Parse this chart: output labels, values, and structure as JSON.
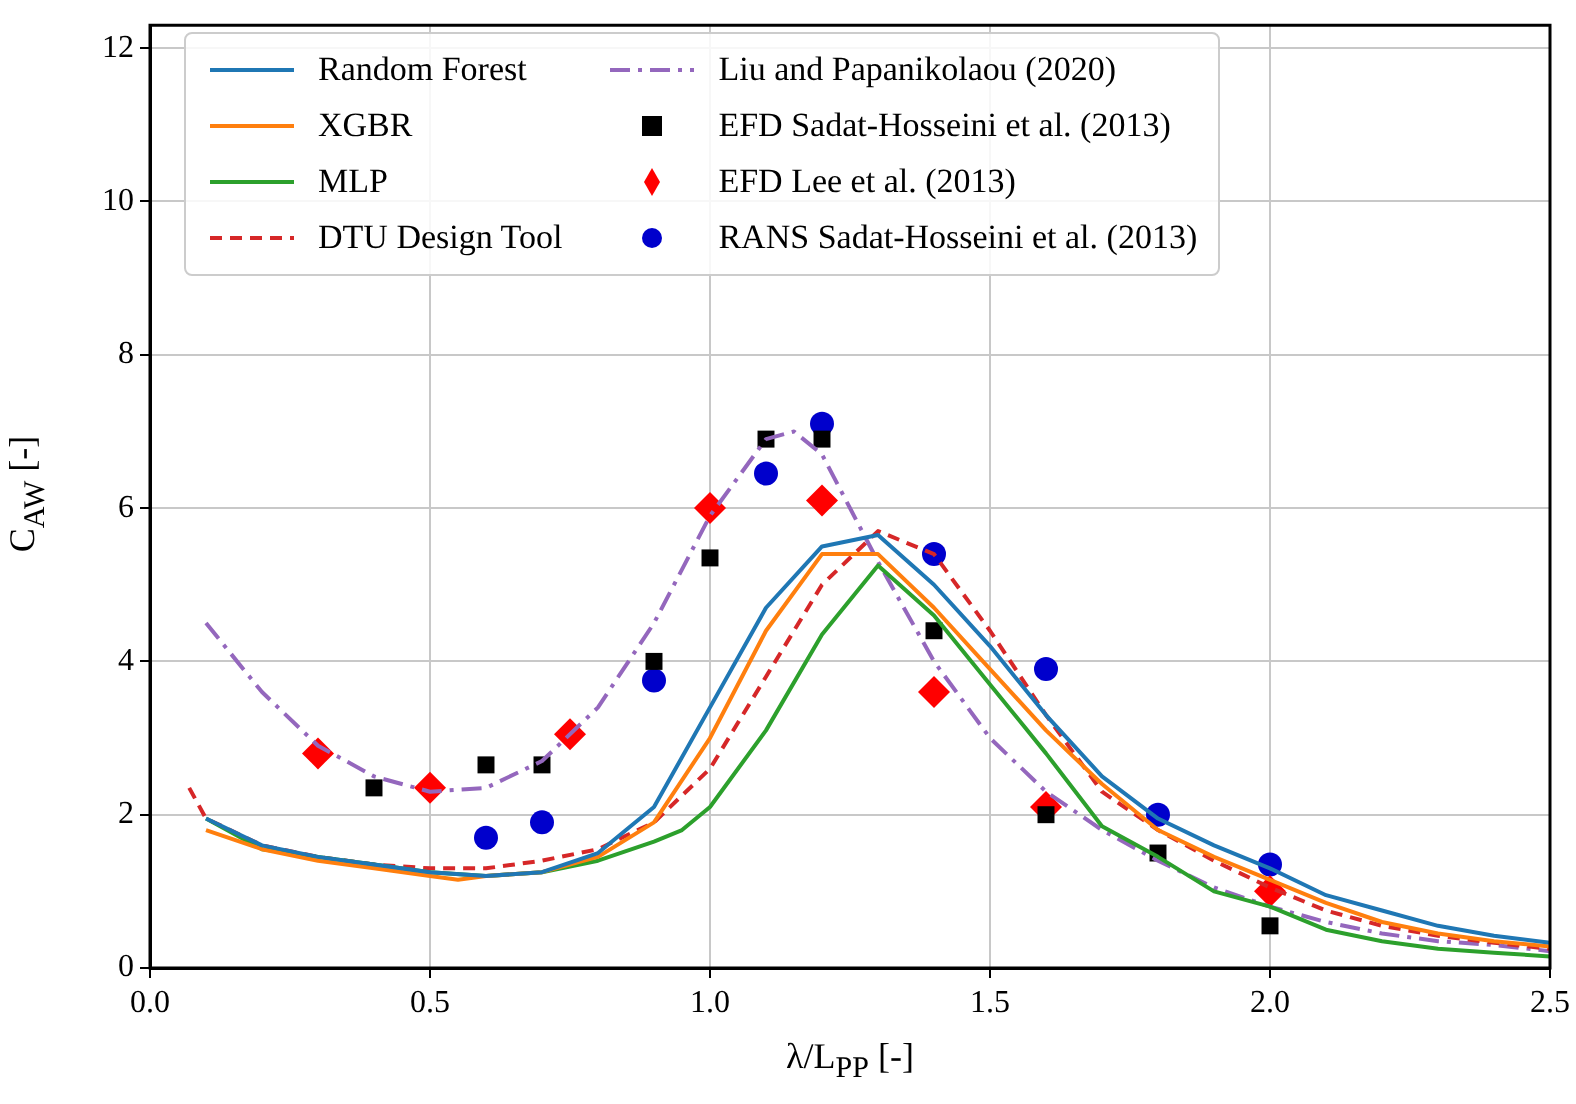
{
  "chart_data": {
    "type": "line",
    "xlabel": "λ/L$_{PP}$ [-]",
    "ylabel": "C$_{AW}$ [-]",
    "xlim": [
      0,
      2.5
    ],
    "ylim": [
      0,
      12.3
    ],
    "xticks": [
      {
        "value": 0,
        "label": "0.0"
      },
      {
        "value": 0.5,
        "label": "0.5"
      },
      {
        "value": 1,
        "label": "1.0"
      },
      {
        "value": 1.5,
        "label": "1.5"
      },
      {
        "value": 2,
        "label": "2.0"
      },
      {
        "value": 2.5,
        "label": "2.5"
      }
    ],
    "yticks": [
      0,
      2,
      4,
      6,
      8,
      10,
      12
    ],
    "grid": true,
    "legend": "top",
    "series": [
      {
        "name": "Random Forest",
        "type": "line",
        "color": "#1f77b4",
        "marker": "none",
        "line_style": "solid",
        "x": [
          0.1,
          0.2,
          0.3,
          0.4,
          0.5,
          0.6,
          0.7,
          0.8,
          0.9,
          1.0,
          1.1,
          1.2,
          1.3,
          1.4,
          1.5,
          1.6,
          1.7,
          1.8,
          1.9,
          2.0,
          2.1,
          2.2,
          2.3,
          2.4,
          2.5
        ],
        "values": [
          1.95,
          1.6,
          1.45,
          1.35,
          1.25,
          1.2,
          1.25,
          1.5,
          2.1,
          3.4,
          4.7,
          5.5,
          5.65,
          5.0,
          4.2,
          3.3,
          2.5,
          1.95,
          1.6,
          1.3,
          0.95,
          0.75,
          0.55,
          0.42,
          0.33
        ]
      },
      {
        "name": "XGBR",
        "type": "line",
        "color": "#ff7f0e",
        "marker": "none",
        "line_style": "solid",
        "x": [
          0.1,
          0.2,
          0.3,
          0.4,
          0.5,
          0.55,
          0.6,
          0.7,
          0.8,
          0.9,
          1.0,
          1.1,
          1.2,
          1.3,
          1.4,
          1.5,
          1.6,
          1.7,
          1.8,
          1.9,
          2.0,
          2.1,
          2.2,
          2.3,
          2.4,
          2.5
        ],
        "values": [
          1.8,
          1.55,
          1.4,
          1.3,
          1.2,
          1.15,
          1.2,
          1.25,
          1.45,
          1.9,
          3.0,
          4.4,
          5.4,
          5.4,
          4.7,
          3.9,
          3.1,
          2.4,
          1.8,
          1.45,
          1.15,
          0.85,
          0.6,
          0.45,
          0.35,
          0.28
        ]
      },
      {
        "name": "MLP",
        "type": "line",
        "color": "#2ca02c",
        "marker": "none",
        "line_style": "solid",
        "x": [
          0.1,
          0.2,
          0.3,
          0.4,
          0.5,
          0.6,
          0.7,
          0.8,
          0.9,
          0.95,
          1.0,
          1.1,
          1.2,
          1.3,
          1.4,
          1.5,
          1.6,
          1.7,
          1.8,
          1.9,
          2.0,
          2.1,
          2.2,
          2.3,
          2.4,
          2.5
        ],
        "values": [
          1.95,
          1.55,
          1.45,
          1.35,
          1.25,
          1.2,
          1.25,
          1.4,
          1.65,
          1.8,
          2.1,
          3.1,
          4.35,
          5.25,
          4.6,
          3.7,
          2.8,
          1.85,
          1.45,
          1.0,
          0.8,
          0.5,
          0.35,
          0.25,
          0.2,
          0.15
        ]
      },
      {
        "name": "DTU Design Tool",
        "type": "line",
        "color": "#d62728",
        "marker": "none",
        "line_style": "dashed",
        "x": [
          0.07,
          0.1,
          0.2,
          0.3,
          0.4,
          0.5,
          0.6,
          0.7,
          0.8,
          0.9,
          1.0,
          1.1,
          1.2,
          1.3,
          1.4,
          1.5,
          1.6,
          1.7,
          1.8,
          1.9,
          2.0,
          2.1,
          2.2,
          2.3,
          2.4,
          2.5
        ],
        "values": [
          2.35,
          1.95,
          1.6,
          1.45,
          1.35,
          1.3,
          1.3,
          1.4,
          1.55,
          1.9,
          2.6,
          3.8,
          5.0,
          5.7,
          5.4,
          4.4,
          3.3,
          2.3,
          1.8,
          1.4,
          1.05,
          0.75,
          0.55,
          0.42,
          0.33,
          0.25
        ]
      },
      {
        "name": "Liu and Papanikolaou (2020)",
        "type": "line",
        "color": "#9467bd",
        "marker": "none",
        "line_style": "dashdot",
        "x": [
          0.1,
          0.2,
          0.3,
          0.4,
          0.5,
          0.6,
          0.7,
          0.8,
          0.9,
          1.0,
          1.1,
          1.15,
          1.2,
          1.3,
          1.4,
          1.5,
          1.6,
          1.7,
          1.8,
          1.9,
          2.0,
          2.1,
          2.2,
          2.3,
          2.4,
          2.5
        ],
        "values": [
          4.5,
          3.6,
          2.9,
          2.5,
          2.3,
          2.35,
          2.7,
          3.4,
          4.5,
          5.9,
          6.9,
          7.0,
          6.7,
          5.3,
          4.0,
          3.0,
          2.3,
          1.8,
          1.4,
          1.05,
          0.8,
          0.6,
          0.45,
          0.35,
          0.3,
          0.22
        ]
      },
      {
        "name": "EFD Sadat-Hosseini et al. (2013)",
        "type": "scatter",
        "color": "#000000",
        "marker": "square",
        "x": [
          0.4,
          0.6,
          0.7,
          0.9,
          1.0,
          1.1,
          1.2,
          1.4,
          1.6,
          1.8,
          2.0
        ],
        "values": [
          2.35,
          2.65,
          2.65,
          4.0,
          5.35,
          6.9,
          6.9,
          4.4,
          2.0,
          1.5,
          0.55
        ]
      },
      {
        "name": "EFD Lee et al. (2013)",
        "type": "scatter",
        "color": "#ff0000",
        "marker": "diamond",
        "x": [
          0.3,
          0.5,
          0.75,
          1.0,
          1.2,
          1.4,
          1.6,
          2.0
        ],
        "values": [
          2.8,
          2.35,
          3.05,
          6.0,
          6.1,
          3.6,
          2.1,
          1.0
        ]
      },
      {
        "name": "RANS Sadat-Hosseini et al. (2013)",
        "type": "scatter",
        "color": "#0000cc",
        "marker": "circle",
        "x": [
          0.6,
          0.7,
          0.9,
          1.1,
          1.2,
          1.4,
          1.6,
          1.8,
          2.0
        ],
        "values": [
          1.7,
          1.9,
          3.75,
          6.45,
          7.1,
          5.4,
          3.9,
          2.0,
          1.35
        ]
      }
    ]
  }
}
